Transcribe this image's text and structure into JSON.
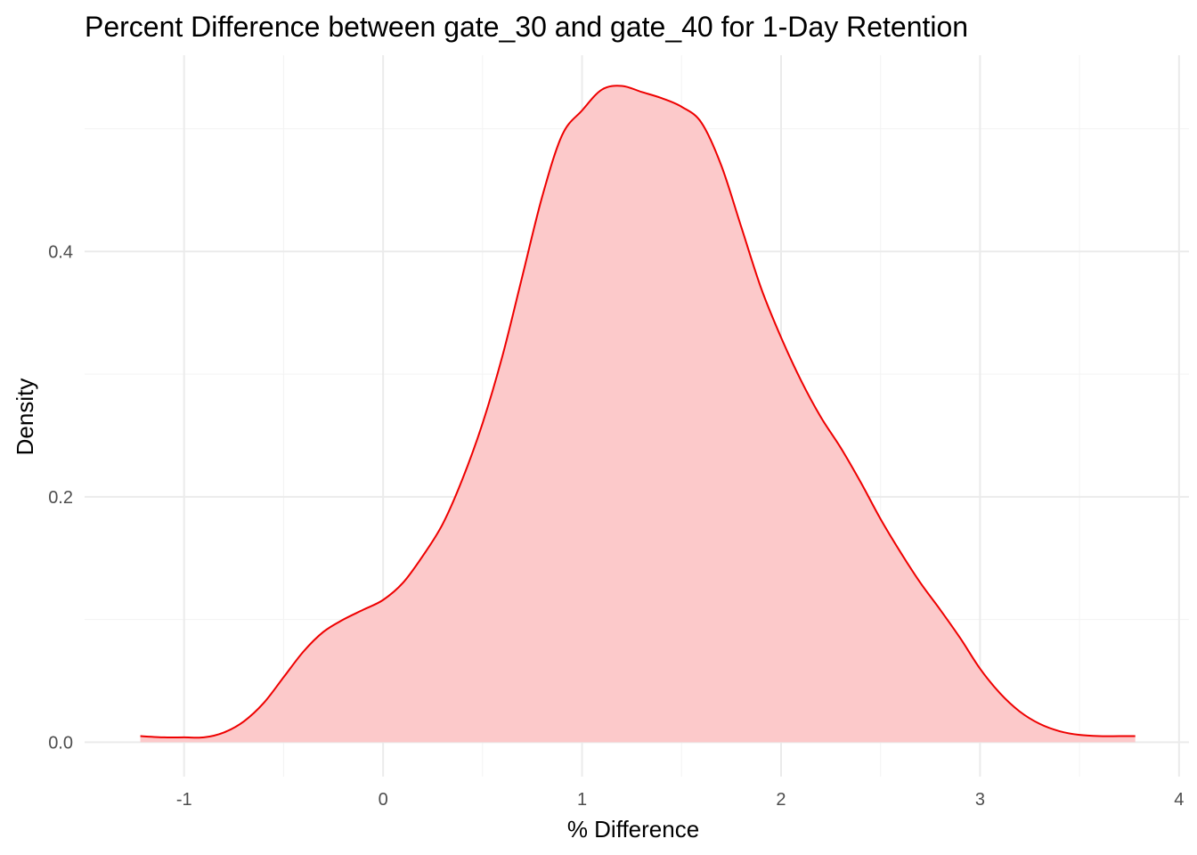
{
  "chart_data": {
    "type": "area",
    "title": "Percent Difference between gate_30 and gate_40 for 1-Day Retention",
    "xlabel": "% Difference",
    "ylabel": "Density",
    "xlim": [
      -1.5,
      4.05
    ],
    "ylim": [
      -0.028,
      0.56
    ],
    "x_ticks": [
      -1,
      0,
      1,
      2,
      3,
      4
    ],
    "x_tick_labels": [
      "-1",
      "0",
      "1",
      "2",
      "3",
      "4"
    ],
    "y_ticks": [
      0.0,
      0.2,
      0.4
    ],
    "y_tick_labels": [
      "0.0",
      "0.2",
      "0.4"
    ],
    "grid": true,
    "legend": "none",
    "series": [
      {
        "fill_color": "#fcc9ca",
        "line_color": "#ee0000",
        "x": [
          -1.22,
          -1.1,
          -1.0,
          -0.9,
          -0.8,
          -0.7,
          -0.6,
          -0.5,
          -0.4,
          -0.3,
          -0.2,
          -0.1,
          0.0,
          0.1,
          0.2,
          0.3,
          0.4,
          0.5,
          0.6,
          0.7,
          0.8,
          0.9,
          1.0,
          1.1,
          1.2,
          1.3,
          1.4,
          1.5,
          1.6,
          1.7,
          1.8,
          1.9,
          2.0,
          2.1,
          2.2,
          2.3,
          2.4,
          2.5,
          2.6,
          2.7,
          2.8,
          2.9,
          3.0,
          3.1,
          3.2,
          3.3,
          3.4,
          3.5,
          3.6,
          3.7,
          3.78
        ],
        "y": [
          0.005,
          0.004,
          0.004,
          0.004,
          0.008,
          0.017,
          0.032,
          0.053,
          0.074,
          0.09,
          0.1,
          0.108,
          0.116,
          0.13,
          0.152,
          0.178,
          0.215,
          0.26,
          0.315,
          0.38,
          0.445,
          0.495,
          0.515,
          0.532,
          0.535,
          0.53,
          0.525,
          0.518,
          0.505,
          0.47,
          0.42,
          0.37,
          0.33,
          0.295,
          0.265,
          0.24,
          0.212,
          0.182,
          0.155,
          0.13,
          0.108,
          0.085,
          0.06,
          0.04,
          0.025,
          0.015,
          0.009,
          0.006,
          0.005,
          0.005,
          0.005
        ]
      }
    ]
  }
}
